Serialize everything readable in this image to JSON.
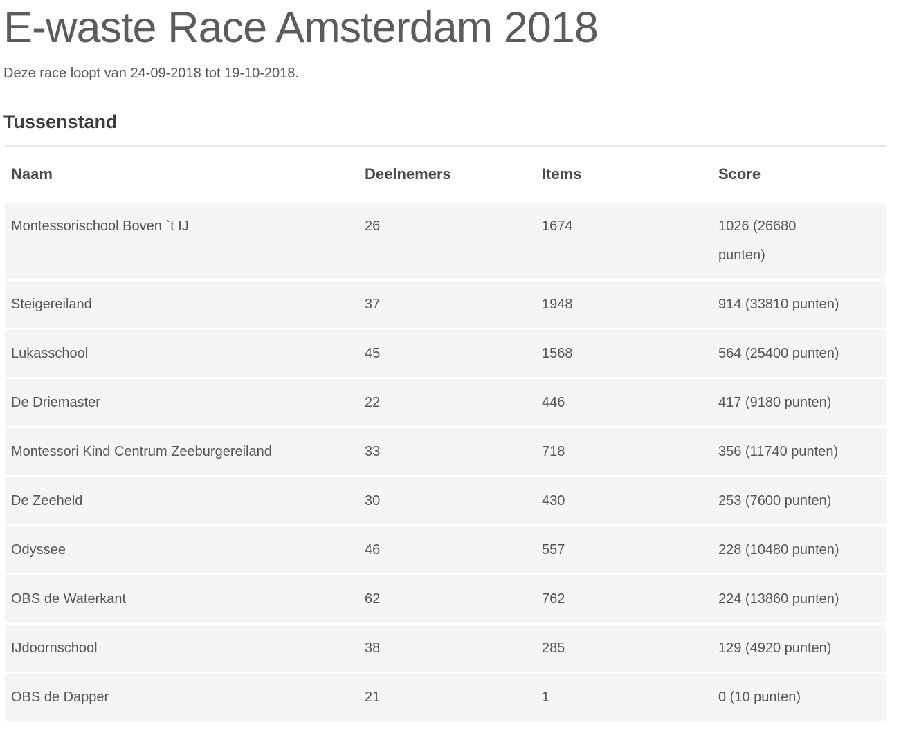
{
  "page": {
    "title": "E-waste Race Amsterdam 2018",
    "subtitle": "Deze race loopt van 24-09-2018 tot 19-10-2018.",
    "section_heading": "Tussenstand"
  },
  "table": {
    "columns": [
      "Naam",
      "Deelnemers",
      "Items",
      "Score"
    ],
    "rows": [
      {
        "naam": "Montessorischool Boven `t IJ",
        "deelnemers": "26",
        "items": "1674",
        "score": "1026 (26680 punten)"
      },
      {
        "naam": "Steigereiland",
        "deelnemers": "37",
        "items": "1948",
        "score": "914 (33810 punten)"
      },
      {
        "naam": "Lukasschool",
        "deelnemers": "45",
        "items": "1568",
        "score": "564 (25400 punten)"
      },
      {
        "naam": "De Driemaster",
        "deelnemers": "22",
        "items": "446",
        "score": "417 (9180 punten)"
      },
      {
        "naam": "Montessori Kind Centrum Zeeburgereiland",
        "deelnemers": "33",
        "items": "718",
        "score": "356 (11740 punten)"
      },
      {
        "naam": "De Zeeheld",
        "deelnemers": "30",
        "items": "430",
        "score": "253 (7600 punten)"
      },
      {
        "naam": "Odyssee",
        "deelnemers": "46",
        "items": "557",
        "score": "228 (10480 punten)"
      },
      {
        "naam": "OBS de Waterkant",
        "deelnemers": "62",
        "items": "762",
        "score": "224 (13860 punten)"
      },
      {
        "naam": "IJdoornschool",
        "deelnemers": "38",
        "items": "285",
        "score": "129 (4920 punten)"
      },
      {
        "naam": "OBS de Dapper",
        "deelnemers": "21",
        "items": "1",
        "score": "0 (10 punten)"
      }
    ]
  },
  "colors": {
    "title_text": "#5c5c5f",
    "heading_text": "#3d3d40",
    "header_text": "#4a4a4d",
    "body_text": "#56565a",
    "row_bg": "#f6f5f3",
    "top_border": "#ebe8e3",
    "page_bg": "#ffffff"
  }
}
